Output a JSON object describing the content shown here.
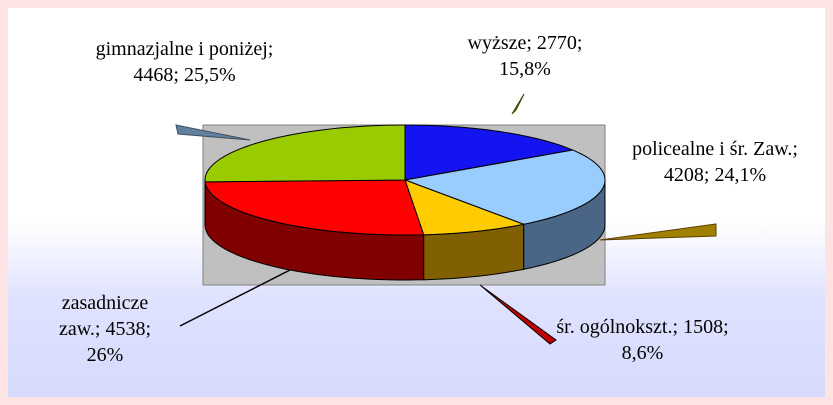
{
  "chart_data": {
    "type": "pie3d",
    "separator": "; ",
    "categories": [
      "wyższe",
      "policealne i śr. Zaw.",
      "śr. ogólnokszt.",
      "zasadnicze zaw.",
      "gimnazjalne i poniżej"
    ],
    "values": [
      2770,
      4208,
      1508,
      4538,
      4468
    ],
    "percentages": [
      15.8,
      24.1,
      8.6,
      26,
      25.5
    ],
    "percentage_labels": [
      "15,8%",
      "24,1%",
      "8,6%",
      "26%",
      "25,5%"
    ],
    "colors": [
      "#1414f0",
      "#99ccff",
      "#ffcc00",
      "#ff0000",
      "#99cc00"
    ],
    "side_colors": [
      "#0a0a80",
      "#4a6585",
      "#806000",
      "#800000",
      "#4d6600"
    ]
  }
}
